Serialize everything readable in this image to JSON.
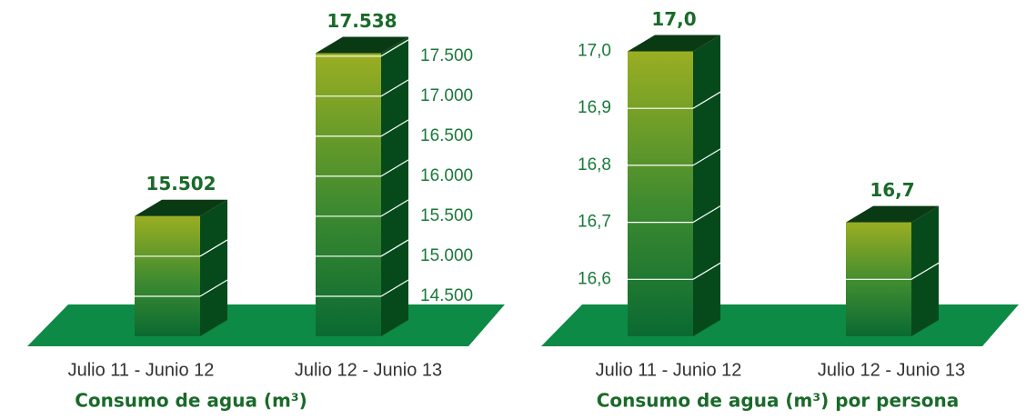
{
  "chart_data": [
    {
      "type": "bar3d",
      "title": "Consumo de agua (m³)",
      "categories": [
        "Julio 11 - Junio 12",
        "Julio 12 - Junio 13"
      ],
      "values": [
        15502,
        17538
      ],
      "value_labels": [
        "15.502",
        "17.538"
      ],
      "ylim": [
        14000,
        17600
      ],
      "yticks": [
        {
          "value": 14500,
          "label": "14.500"
        },
        {
          "value": 15000,
          "label": "15.000"
        },
        {
          "value": 15500,
          "label": "15.500"
        },
        {
          "value": 16000,
          "label": "16.000"
        },
        {
          "value": 16500,
          "label": "16.500"
        },
        {
          "value": 17000,
          "label": "17.000"
        },
        {
          "value": 17500,
          "label": "17.500"
        }
      ],
      "yaxis_side": "right",
      "color": "#0b6b32"
    },
    {
      "type": "bar3d",
      "title": "Consumo de agua (m³) por persona",
      "categories": [
        "Julio 11 - Junio 12",
        "Julio 12 - Junio 13"
      ],
      "values": [
        17.0,
        16.7
      ],
      "value_labels": [
        "17,0",
        "16,7"
      ],
      "ylim": [
        16.5,
        17.0
      ],
      "yticks": [
        {
          "value": 16.6,
          "label": "16,6"
        },
        {
          "value": 16.7,
          "label": "16,7"
        },
        {
          "value": 16.8,
          "label": "16,8"
        },
        {
          "value": 16.9,
          "label": "16,9"
        },
        {
          "value": 17.0,
          "label": "17,0"
        }
      ],
      "yaxis_side": "left",
      "color": "#0b6b32"
    }
  ]
}
